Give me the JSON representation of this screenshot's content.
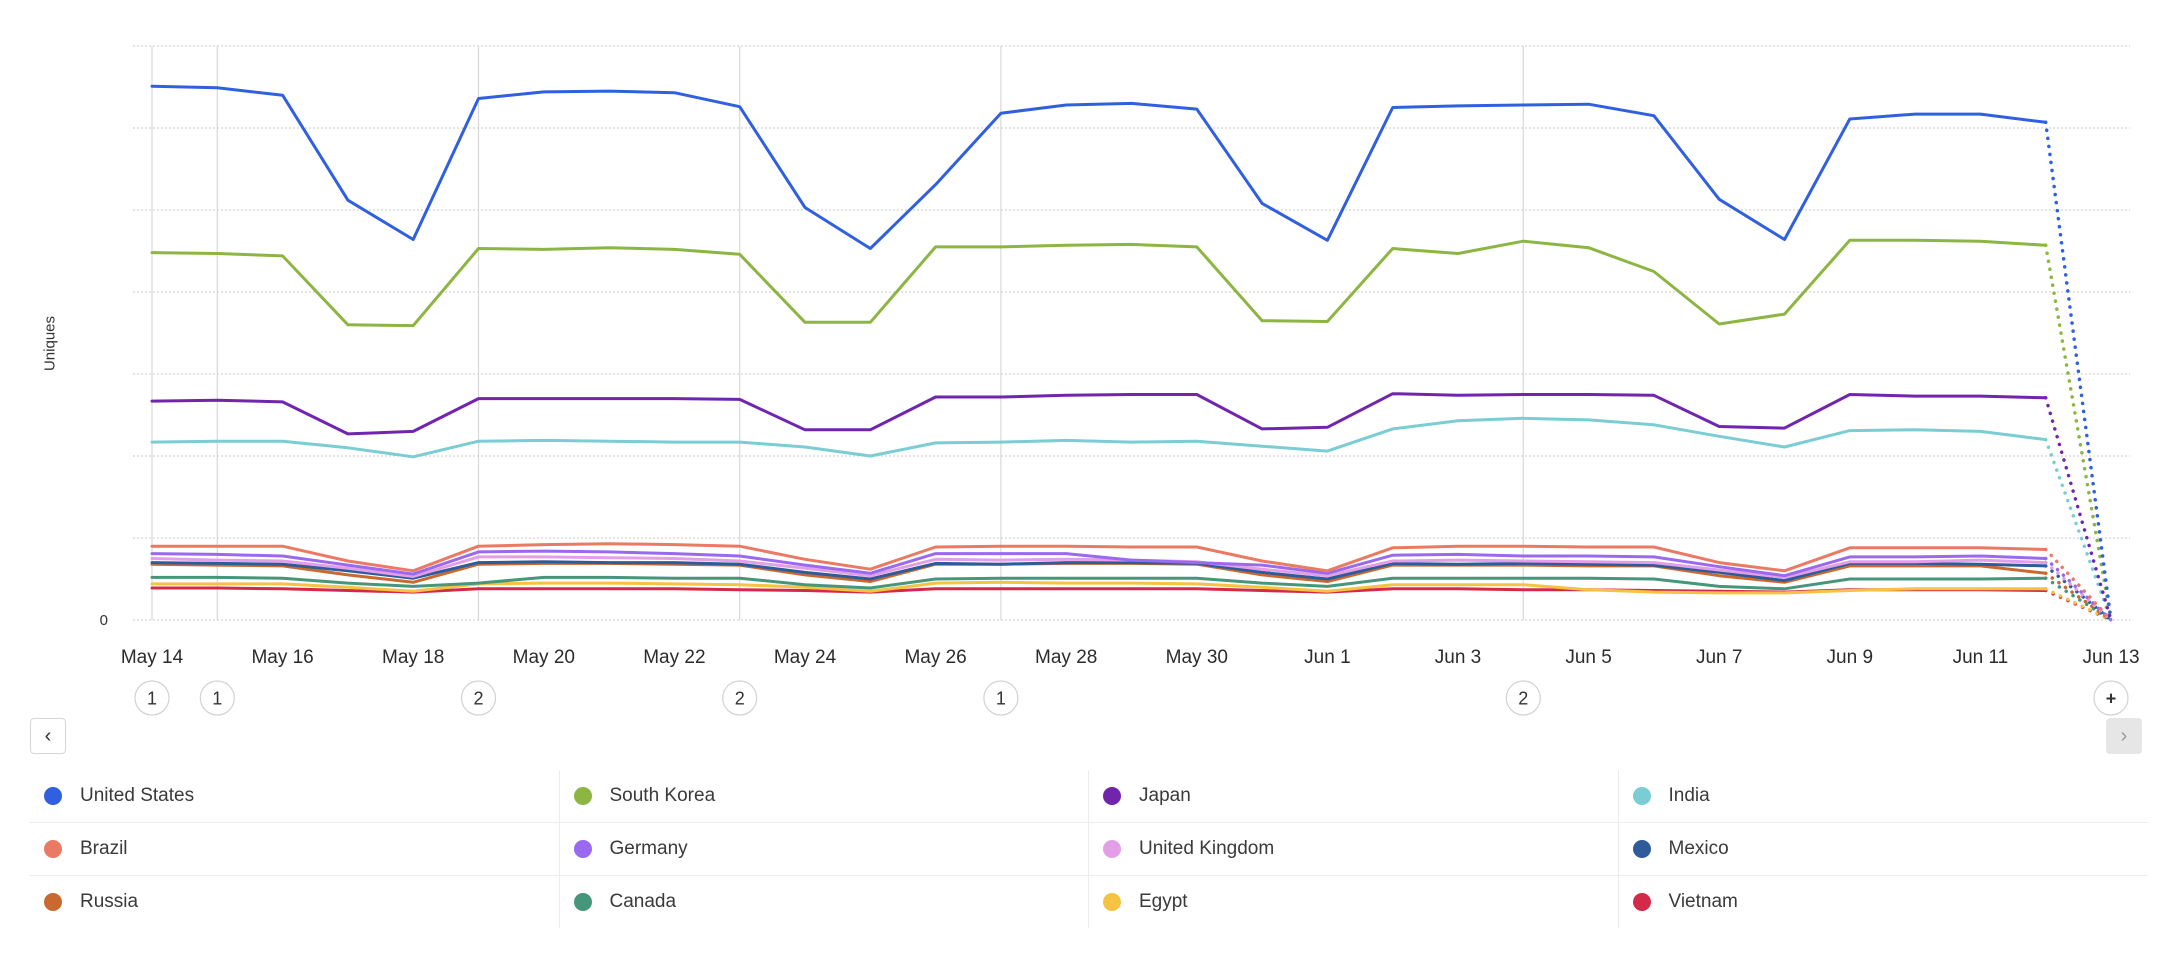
{
  "chart_data": {
    "type": "line",
    "ylabel": "Uniques",
    "y_tick_labels": [
      "0"
    ],
    "ylim": [
      0,
      700
    ],
    "x": [
      "May 14",
      "May 15",
      "May 16",
      "May 17",
      "May 18",
      "May 19",
      "May 20",
      "May 21",
      "May 22",
      "May 23",
      "May 24",
      "May 25",
      "May 26",
      "May 27",
      "May 28",
      "May 29",
      "May 30",
      "May 31",
      "Jun 1",
      "Jun 2",
      "Jun 3",
      "Jun 4",
      "Jun 5",
      "Jun 6",
      "Jun 7",
      "Jun 8",
      "Jun 9",
      "Jun 10",
      "Jun 11",
      "Jun 12",
      "Jun 13"
    ],
    "x_tick_labels": [
      "May 14",
      "May 16",
      "May 18",
      "May 20",
      "May 22",
      "May 24",
      "May 26",
      "May 28",
      "May 30",
      "Jun 1",
      "Jun 3",
      "Jun 5",
      "Jun 7",
      "Jun 9",
      "Jun 11",
      "Jun 13"
    ],
    "partial_last_point": true,
    "series": [
      {
        "name": "United States",
        "color": "#3060e0",
        "values": [
          651,
          649,
          640,
          512,
          464,
          636,
          644,
          645,
          643,
          626,
          503,
          453,
          531,
          618,
          628,
          630,
          623,
          508,
          463,
          625,
          627,
          628,
          629,
          615,
          513,
          464,
          611,
          617,
          617,
          607,
          0
        ]
      },
      {
        "name": "South Korea",
        "color": "#8cb542",
        "values": [
          448,
          447,
          444,
          360,
          359,
          453,
          452,
          454,
          452,
          446,
          363,
          363,
          455,
          455,
          457,
          458,
          455,
          365,
          364,
          453,
          447,
          462,
          454,
          425,
          361,
          373,
          463,
          463,
          462,
          457,
          0
        ]
      },
      {
        "name": "Japan",
        "color": "#7125ad",
        "values": [
          267,
          268,
          266,
          227,
          230,
          270,
          270,
          270,
          270,
          269,
          232,
          232,
          272,
          272,
          274,
          275,
          275,
          233,
          235,
          276,
          274,
          275,
          275,
          274,
          236,
          234,
          275,
          273,
          273,
          271,
          0
        ]
      },
      {
        "name": "India",
        "color": "#79cdd3",
        "values": [
          217,
          218,
          218,
          210,
          199,
          218,
          219,
          218,
          217,
          217,
          211,
          200,
          216,
          217,
          219,
          217,
          218,
          212,
          206,
          233,
          243,
          246,
          244,
          238,
          224,
          211,
          231,
          232,
          230,
          220,
          0
        ]
      },
      {
        "name": "Brazil",
        "color": "#ea7a63",
        "values": [
          90,
          90,
          90,
          72,
          60,
          90,
          92,
          93,
          92,
          90,
          74,
          62,
          89,
          90,
          90,
          89,
          89,
          72,
          60,
          88,
          90,
          90,
          89,
          89,
          70,
          60,
          88,
          88,
          88,
          86,
          0
        ]
      },
      {
        "name": "Germany",
        "color": "#9a69f0",
        "values": [
          81,
          80,
          78,
          67,
          56,
          83,
          84,
          83,
          81,
          78,
          67,
          57,
          81,
          81,
          81,
          73,
          70,
          67,
          57,
          79,
          80,
          78,
          78,
          77,
          65,
          54,
          77,
          77,
          78,
          75,
          0
        ]
      },
      {
        "name": "United Kingdom",
        "color": "#e39ee8",
        "values": [
          75,
          73,
          72,
          63,
          53,
          77,
          77,
          76,
          75,
          72,
          63,
          54,
          74,
          73,
          74,
          73,
          71,
          62,
          54,
          72,
          73,
          72,
          71,
          70,
          61,
          52,
          71,
          71,
          73,
          70,
          0
        ]
      },
      {
        "name": "Mexico",
        "color": "#2e5c9a",
        "values": [
          70,
          69,
          68,
          60,
          51,
          70,
          71,
          70,
          70,
          68,
          58,
          50,
          69,
          68,
          70,
          70,
          69,
          58,
          50,
          69,
          68,
          69,
          68,
          67,
          58,
          48,
          69,
          69,
          68,
          66,
          0
        ]
      },
      {
        "name": "Russia",
        "color": "#c9692f",
        "values": [
          68,
          67,
          66,
          55,
          46,
          68,
          69,
          69,
          68,
          67,
          55,
          47,
          68,
          68,
          69,
          69,
          68,
          55,
          47,
          67,
          67,
          67,
          66,
          66,
          54,
          46,
          66,
          66,
          66,
          57,
          0
        ]
      },
      {
        "name": "Canada",
        "color": "#46967c",
        "values": [
          52,
          52,
          51,
          45,
          41,
          45,
          52,
          52,
          51,
          51,
          43,
          39,
          50,
          51,
          51,
          51,
          51,
          45,
          41,
          51,
          51,
          51,
          51,
          50,
          41,
          38,
          50,
          50,
          50,
          51,
          0
        ]
      },
      {
        "name": "Egypt",
        "color": "#f5c242",
        "values": [
          44,
          44,
          44,
          40,
          35,
          44,
          45,
          45,
          44,
          43,
          40,
          35,
          45,
          46,
          45,
          45,
          44,
          40,
          35,
          43,
          43,
          43,
          37,
          34,
          33,
          33,
          36,
          38,
          38,
          38,
          0
        ]
      },
      {
        "name": "Vietnam",
        "color": "#d42a4a",
        "values": [
          39,
          39,
          38,
          36,
          34,
          38,
          38,
          38,
          38,
          37,
          36,
          34,
          38,
          38,
          38,
          38,
          38,
          36,
          34,
          38,
          38,
          37,
          37,
          36,
          35,
          34,
          37,
          37,
          37,
          36,
          0
        ]
      }
    ],
    "annotations": [
      {
        "x": "May 14",
        "label": "1"
      },
      {
        "x": "May 15",
        "label": "1"
      },
      {
        "x": "May 19",
        "label": "2"
      },
      {
        "x": "May 23",
        "label": "2"
      },
      {
        "x": "May 27",
        "label": "1"
      },
      {
        "x": "Jun 4",
        "label": "2"
      },
      {
        "x": "Jun 13",
        "label": "+"
      }
    ],
    "grid": true,
    "legend_position": "bottom"
  },
  "navigation": {
    "prev_icon": "chevron-left-icon",
    "next_icon": "chevron-right-icon",
    "prev_glyph": "‹",
    "next_glyph": "›"
  },
  "legend": [
    {
      "label": "United States",
      "color": "#3060e0"
    },
    {
      "label": "South Korea",
      "color": "#8cb542"
    },
    {
      "label": "Japan",
      "color": "#7125ad"
    },
    {
      "label": "India",
      "color": "#79cdd3"
    },
    {
      "label": "Brazil",
      "color": "#ea7a63"
    },
    {
      "label": "Germany",
      "color": "#9a69f0"
    },
    {
      "label": "United Kingdom",
      "color": "#e39ee8"
    },
    {
      "label": "Mexico",
      "color": "#2e5c9a"
    },
    {
      "label": "Russia",
      "color": "#c9692f"
    },
    {
      "label": "Canada",
      "color": "#46967c"
    },
    {
      "label": "Egypt",
      "color": "#f5c242"
    },
    {
      "label": "Vietnam",
      "color": "#d42a4a"
    }
  ]
}
